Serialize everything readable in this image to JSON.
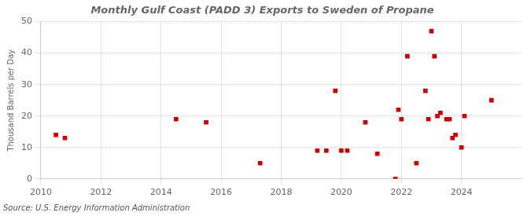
{
  "chart_data": {
    "type": "scatter",
    "title": "Monthly Gulf Coast (PADD 3) Exports to Sweden of Propane",
    "ylabel": "Thousand Barrels per Day",
    "annotation": "Source: U.S. Energy Information Administration",
    "x": [
      2010.5,
      2010.8,
      2014.5,
      2015.5,
      2017.3,
      2019.2,
      2019.5,
      2019.8,
      2020.0,
      2020.2,
      2020.8,
      2021.2,
      2021.8,
      2021.9,
      2022.0,
      2022.2,
      2022.5,
      2022.8,
      2022.9,
      2023.0,
      2023.1,
      2023.2,
      2023.3,
      2023.5,
      2023.6,
      2023.7,
      2023.8,
      2024.0,
      2024.1,
      2025.0
    ],
    "values": [
      14,
      13,
      19,
      18,
      5,
      9,
      9,
      28,
      9,
      9,
      18,
      8,
      0,
      22,
      19,
      39,
      5,
      28,
      19,
      47,
      39,
      20,
      21,
      19,
      19,
      13,
      14,
      10,
      20,
      25
    ],
    "color": "#cc0000",
    "marker": "square",
    "xlim": [
      2010,
      2026
    ],
    "ylim": [
      0,
      50
    ],
    "xticks": [
      2010,
      2012,
      2014,
      2016,
      2018,
      2020,
      2022,
      2024
    ],
    "yticks": [
      0,
      10,
      20,
      30,
      40,
      50
    ],
    "grid": true
  }
}
